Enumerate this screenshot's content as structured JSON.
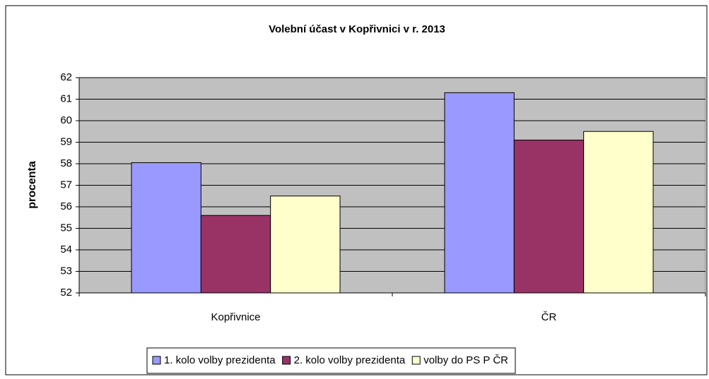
{
  "chart_data": {
    "type": "bar",
    "title": "Volební účast v Kopřivnici v r. 2013",
    "y_label": "procenta",
    "categories": [
      "Kopřivnice",
      "ČR"
    ],
    "series": [
      {
        "name": "1. kolo volby prezidenta",
        "color": "#9999ff",
        "values": [
          58.05,
          61.3
        ]
      },
      {
        "name": "2. kolo volby prezidenta",
        "color": "#993366",
        "values": [
          55.6,
          59.1
        ]
      },
      {
        "name": "volby do PS P ČR",
        "color": "#ffffcc",
        "values": [
          56.5,
          59.5
        ]
      }
    ],
    "ylim": [
      52,
      62
    ],
    "yticks": [
      52,
      53,
      54,
      55,
      56,
      57,
      58,
      59,
      60,
      61,
      62
    ],
    "grid": true,
    "legend": "bottom",
    "plot_background": "#c0c0c0"
  }
}
